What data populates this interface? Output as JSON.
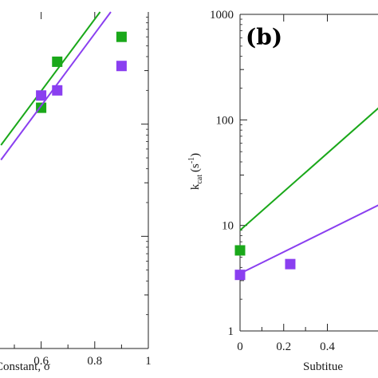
{
  "colors": {
    "green": "#1aa81a",
    "purple": "#8a3ff0",
    "axis": "#222222"
  },
  "chart_data": [
    {
      "type": "scatter",
      "panel": "left",
      "xlabel": "Constant, σ",
      "ylabel": "",
      "xlim": [
        0.45,
        1.0
      ],
      "ylim_log": [
        1,
        1000
      ],
      "log_y": true,
      "x_ticks": [
        0.6,
        0.8,
        1
      ],
      "x_tick_labels": [
        "0.6",
        "0.8",
        "1"
      ],
      "grid": false,
      "series": [
        {
          "color": "green",
          "points": [
            [
              0.6,
              140
            ],
            [
              0.66,
              360
            ],
            [
              0.9,
              600
            ]
          ],
          "fit_line": [
            [
              0.45,
              65
            ],
            [
              0.82,
              1000
            ]
          ]
        },
        {
          "color": "purple",
          "points": [
            [
              0.6,
              180
            ],
            [
              0.66,
              200
            ],
            [
              0.9,
              330
            ]
          ],
          "fit_line": [
            [
              0.45,
              48
            ],
            [
              0.86,
              1000
            ]
          ]
        }
      ]
    },
    {
      "type": "scatter",
      "panel": "right",
      "panel_label": "(b)",
      "xlabel": "Subtitue",
      "ylabel_main": "k",
      "ylabel_sub": "cat",
      "ylabel_unit": "(s",
      "ylabel_exp": "-1",
      "ylabel_close": ")",
      "log_y": true,
      "ylim": [
        1,
        1000
      ],
      "y_ticks": [
        1,
        10,
        100,
        1000
      ],
      "y_tick_labels": [
        "1",
        "10",
        "100",
        "1000"
      ],
      "xlim": [
        0,
        0.8
      ],
      "x_ticks": [
        0,
        0.2,
        0.4
      ],
      "x_tick_labels": [
        "0",
        "0.2",
        "0.4"
      ],
      "grid": false,
      "series": [
        {
          "color": "green",
          "points": [
            [
              0.0,
              5.8
            ]
          ],
          "fit_line": [
            [
              0.0,
              9.0
            ],
            [
              0.8,
              260
            ]
          ]
        },
        {
          "color": "purple",
          "points": [
            [
              0.0,
              3.4
            ],
            [
              0.23,
              4.3
            ]
          ],
          "fit_line": [
            [
              0.0,
              3.5
            ],
            [
              0.8,
              23
            ]
          ]
        }
      ]
    }
  ]
}
